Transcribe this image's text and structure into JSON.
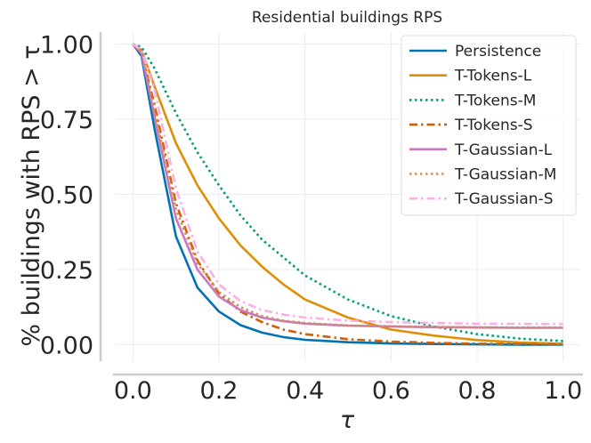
{
  "chart_data": {
    "type": "line",
    "title": "Residential buildings RPS",
    "xlabel": "τ",
    "ylabel": "% buildings with RPS  > τ",
    "xlim": [
      -0.04,
      1.04
    ],
    "ylim": [
      -0.055,
      1.04
    ],
    "xticks": [
      "0.0",
      "0.2",
      "0.4",
      "0.6",
      "0.8",
      "1.0"
    ],
    "yticks": [
      "0.00",
      "0.25",
      "0.50",
      "0.75",
      "1.00"
    ],
    "grid": true,
    "legend_position": "top-right",
    "series": [
      {
        "name": "Persistence",
        "color": "#0173b2",
        "dash": "solid",
        "x": [
          0,
          0.02,
          0.05,
          0.1,
          0.15,
          0.2,
          0.25,
          0.3,
          0.35,
          0.4,
          0.5,
          0.6,
          0.7,
          0.8,
          0.9,
          1.0
        ],
        "y": [
          1.0,
          0.96,
          0.72,
          0.36,
          0.19,
          0.11,
          0.065,
          0.04,
          0.025,
          0.016,
          0.008,
          0.004,
          0.002,
          0.001,
          0.0,
          0.0
        ]
      },
      {
        "name": "T-Tokens-L",
        "color": "#de8f05",
        "dash": "solid",
        "x": [
          0,
          0.02,
          0.05,
          0.1,
          0.15,
          0.2,
          0.25,
          0.3,
          0.35,
          0.4,
          0.5,
          0.6,
          0.7,
          0.8,
          0.9,
          1.0
        ],
        "y": [
          1.0,
          0.98,
          0.86,
          0.67,
          0.53,
          0.42,
          0.33,
          0.26,
          0.2,
          0.15,
          0.09,
          0.05,
          0.03,
          0.015,
          0.007,
          0.003
        ]
      },
      {
        "name": "T-Tokens-M",
        "color": "#029e73",
        "dash": "dot",
        "x": [
          0,
          0.02,
          0.05,
          0.1,
          0.15,
          0.2,
          0.25,
          0.3,
          0.35,
          0.4,
          0.5,
          0.6,
          0.7,
          0.8,
          0.9,
          1.0
        ],
        "y": [
          1.0,
          0.99,
          0.92,
          0.77,
          0.64,
          0.53,
          0.43,
          0.35,
          0.29,
          0.23,
          0.15,
          0.095,
          0.06,
          0.035,
          0.02,
          0.012
        ]
      },
      {
        "name": "T-Tokens-S",
        "color": "#d55e00",
        "dash": "dashdot",
        "x": [
          0,
          0.02,
          0.05,
          0.1,
          0.15,
          0.2,
          0.25,
          0.3,
          0.35,
          0.4,
          0.5,
          0.6,
          0.7,
          0.8,
          0.9,
          1.0
        ],
        "y": [
          1.0,
          0.97,
          0.8,
          0.47,
          0.28,
          0.17,
          0.11,
          0.075,
          0.05,
          0.035,
          0.018,
          0.01,
          0.006,
          0.003,
          0.002,
          0.001
        ]
      },
      {
        "name": "T-Gaussian-L",
        "color": "#cc78bc",
        "dash": "solid",
        "x": [
          0,
          0.02,
          0.05,
          0.1,
          0.15,
          0.2,
          0.25,
          0.3,
          0.35,
          0.4,
          0.5,
          0.6,
          0.7,
          0.8,
          0.9,
          1.0
        ],
        "y": [
          1.0,
          0.97,
          0.76,
          0.42,
          0.25,
          0.16,
          0.115,
          0.09,
          0.078,
          0.07,
          0.063,
          0.06,
          0.058,
          0.057,
          0.056,
          0.056
        ]
      },
      {
        "name": "T-Gaussian-M",
        "color": "#ca9161",
        "dash": "dot",
        "x": [
          0,
          0.02,
          0.05,
          0.1,
          0.15,
          0.2,
          0.25,
          0.3,
          0.35,
          0.4,
          0.5,
          0.6,
          0.7,
          0.8,
          0.9,
          1.0
        ],
        "y": [
          1.0,
          0.97,
          0.78,
          0.45,
          0.27,
          0.175,
          0.125,
          0.095,
          0.08,
          0.072,
          0.064,
          0.061,
          0.059,
          0.058,
          0.057,
          0.057
        ]
      },
      {
        "name": "T-Gaussian-S",
        "color": "#fbafe4",
        "dash": "dashdot",
        "x": [
          0,
          0.02,
          0.05,
          0.1,
          0.15,
          0.2,
          0.25,
          0.3,
          0.35,
          0.4,
          0.5,
          0.6,
          0.7,
          0.8,
          0.9,
          1.0
        ],
        "y": [
          1.0,
          0.98,
          0.85,
          0.52,
          0.31,
          0.2,
          0.145,
          0.115,
          0.1,
          0.09,
          0.08,
          0.075,
          0.072,
          0.07,
          0.069,
          0.068
        ]
      }
    ]
  }
}
